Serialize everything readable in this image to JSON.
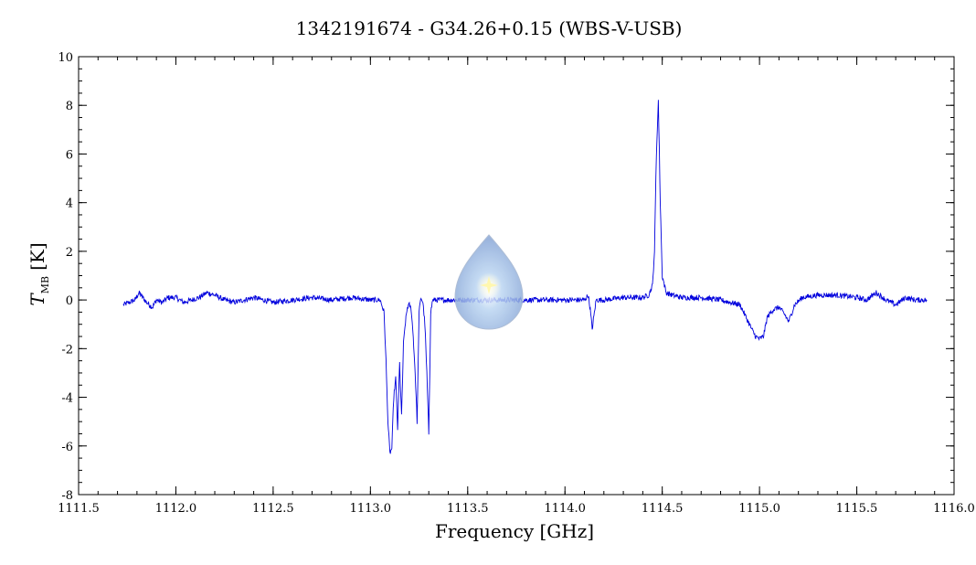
{
  "chart_data": {
    "type": "line",
    "title": "1342191674 - G34.26+0.15 (WBS-V-USB)",
    "xlabel": "Frequency [GHz]",
    "ylabel_symbol": "T",
    "ylabel_subscript": "MB",
    "ylabel_unit": "[K]",
    "xlim": [
      1111.5,
      1116.0
    ],
    "ylim": [
      -8,
      10
    ],
    "x_ticks": [
      "1111.5",
      "1112.0",
      "1112.5",
      "1113.0",
      "1113.5",
      "1114.0",
      "1114.5",
      "1115.0",
      "1115.5",
      "1116.0"
    ],
    "y_ticks": [
      "-8",
      "-6",
      "-4",
      "-2",
      "0",
      "2",
      "4",
      "6",
      "8",
      "10"
    ],
    "grid": false,
    "line_color": "#0000dd",
    "series": [
      {
        "x": [
          1111.73,
          1111.76,
          1111.79,
          1111.81,
          1111.83,
          1111.85,
          1111.88,
          1111.9,
          1111.93,
          1111.96,
          1112.0,
          1112.04,
          1112.08,
          1112.12,
          1112.16,
          1112.2,
          1112.25,
          1112.3,
          1112.35,
          1112.4,
          1112.5,
          1112.6,
          1112.7,
          1112.8,
          1112.9,
          1113.0,
          1113.05,
          1113.07,
          1113.08,
          1113.09,
          1113.1,
          1113.11,
          1113.12,
          1113.13,
          1113.14,
          1113.15,
          1113.16,
          1113.17,
          1113.18,
          1113.19,
          1113.2,
          1113.21,
          1113.22,
          1113.23,
          1113.24,
          1113.25,
          1113.26,
          1113.27,
          1113.28,
          1113.29,
          1113.3,
          1113.31,
          1113.32,
          1113.35,
          1113.4,
          1113.5,
          1113.6,
          1113.7,
          1113.8,
          1113.9,
          1114.0,
          1114.1,
          1114.12,
          1114.13,
          1114.14,
          1114.16,
          1114.2,
          1114.3,
          1114.4,
          1114.43,
          1114.45,
          1114.46,
          1114.47,
          1114.48,
          1114.49,
          1114.5,
          1114.52,
          1114.55,
          1114.6,
          1114.7,
          1114.8,
          1114.9,
          1114.93,
          1114.96,
          1114.98,
          1115.0,
          1115.02,
          1115.04,
          1115.07,
          1115.1,
          1115.13,
          1115.15,
          1115.18,
          1115.22,
          1115.3,
          1115.4,
          1115.5,
          1115.55,
          1115.6,
          1115.65,
          1115.7,
          1115.75,
          1115.8,
          1115.86
        ],
        "y": [
          -0.2,
          -0.1,
          0.0,
          0.3,
          0.1,
          -0.1,
          -0.3,
          0.0,
          -0.1,
          0.1,
          0.1,
          -0.1,
          0.0,
          0.1,
          0.3,
          0.2,
          0.0,
          -0.1,
          0.0,
          0.1,
          -0.1,
          0.0,
          0.1,
          0.0,
          0.1,
          0.0,
          0.0,
          -0.5,
          -2.5,
          -5.0,
          -6.3,
          -6.1,
          -4.0,
          -3.2,
          -5.3,
          -2.6,
          -4.8,
          -1.8,
          -0.9,
          -0.3,
          -0.2,
          -0.4,
          -1.5,
          -3.0,
          -5.0,
          -0.5,
          0.1,
          -0.1,
          -1.0,
          -3.0,
          -5.5,
          -0.5,
          0.0,
          0.0,
          0.0,
          0.0,
          0.0,
          0.0,
          0.0,
          0.0,
          0.0,
          0.0,
          0.2,
          -0.4,
          -1.2,
          0.0,
          0.0,
          0.1,
          0.1,
          0.2,
          0.6,
          2.0,
          6.0,
          8.2,
          4.0,
          1.0,
          0.3,
          0.2,
          0.1,
          0.1,
          0.0,
          -0.2,
          -0.7,
          -1.2,
          -1.5,
          -1.6,
          -1.5,
          -0.7,
          -0.4,
          -0.3,
          -0.6,
          -0.9,
          -0.2,
          0.1,
          0.2,
          0.2,
          0.1,
          0.0,
          0.3,
          0.0,
          -0.2,
          0.1,
          0.0,
          0.0
        ]
      }
    ]
  }
}
